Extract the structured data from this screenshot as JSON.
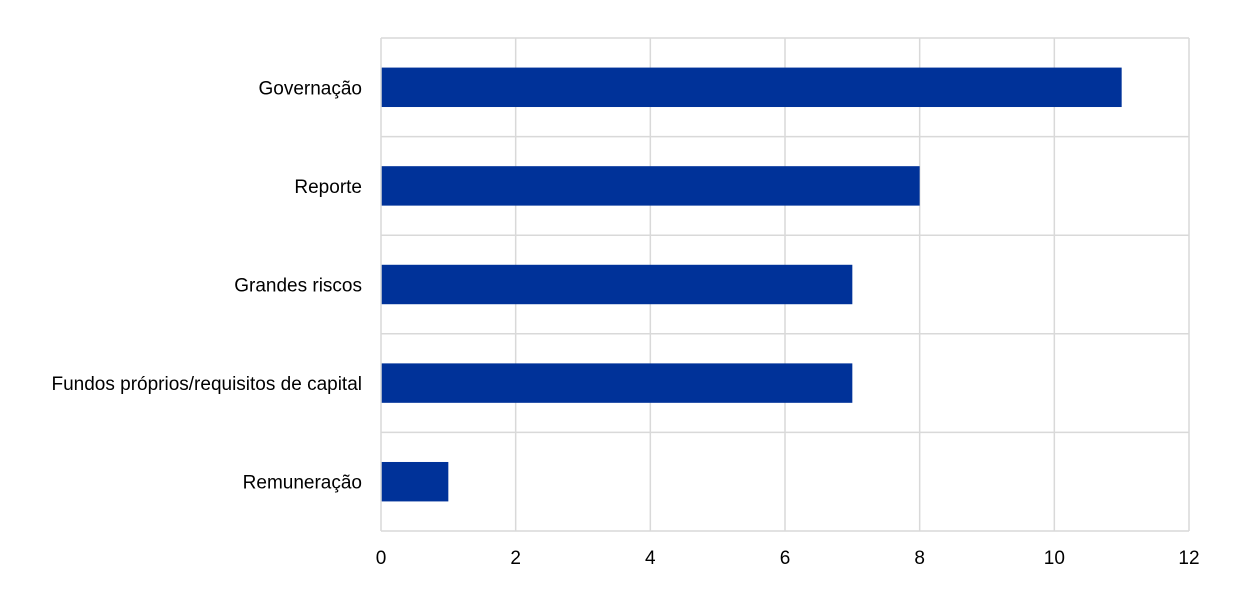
{
  "chart_data": {
    "type": "bar",
    "orientation": "horizontal",
    "categories": [
      "Governação",
      "Reporte",
      "Grandes riscos",
      "Fundos próprios/requisitos de capital",
      "Remuneração"
    ],
    "values": [
      11,
      8,
      7,
      7,
      1
    ],
    "title": "",
    "xlabel": "",
    "ylabel": "",
    "xlim": [
      0,
      12
    ],
    "x_ticks": [
      0,
      2,
      4,
      6,
      8,
      10,
      12
    ],
    "grid": true,
    "legend": "none",
    "bar_color": "#003299",
    "grid_color": "#d9d9d9"
  }
}
